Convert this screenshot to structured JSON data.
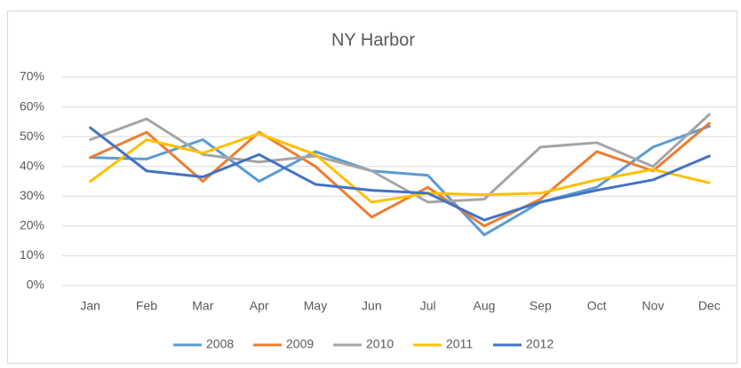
{
  "chart_data": {
    "type": "line",
    "title": "NY Harbor",
    "categories": [
      "Jan",
      "Feb",
      "Mar",
      "Apr",
      "May",
      "Jun",
      "Jul",
      "Aug",
      "Sep",
      "Oct",
      "Nov",
      "Dec"
    ],
    "series": [
      {
        "name": "2008",
        "color": "#5b9bd5",
        "values": [
          43,
          42.5,
          49,
          35,
          45,
          38.5,
          37,
          17,
          28,
          33,
          46.5,
          53.5
        ]
      },
      {
        "name": "2009",
        "color": "#ed7d31",
        "values": [
          43,
          51.5,
          35,
          51.5,
          40,
          23,
          33,
          20,
          29,
          45,
          38.5,
          54.5
        ]
      },
      {
        "name": "2010",
        "color": "#a5a5a5",
        "values": [
          49,
          56,
          44,
          41.5,
          43.5,
          38.5,
          28,
          29,
          46.5,
          48,
          40,
          57.5
        ]
      },
      {
        "name": "2011",
        "color": "#ffc000",
        "values": [
          35,
          49,
          44.5,
          51,
          44,
          28,
          31,
          30.5,
          31,
          35.5,
          39,
          34.5
        ]
      },
      {
        "name": "2012",
        "color": "#4472c4",
        "values": [
          53,
          38.5,
          36.5,
          44,
          34,
          32,
          31,
          22,
          28,
          32,
          35.5,
          43.5
        ]
      }
    ],
    "ylim": [
      0,
      70
    ],
    "yticks": [
      {
        "value": 0,
        "label": "0%"
      },
      {
        "value": 10,
        "label": "10%"
      },
      {
        "value": 20,
        "label": "20%"
      },
      {
        "value": 30,
        "label": "30%"
      },
      {
        "value": 40,
        "label": "40%"
      },
      {
        "value": 50,
        "label": "50%"
      },
      {
        "value": 60,
        "label": "60%"
      },
      {
        "value": 70,
        "label": "70%"
      }
    ],
    "grid": true,
    "legend": "bottom"
  }
}
